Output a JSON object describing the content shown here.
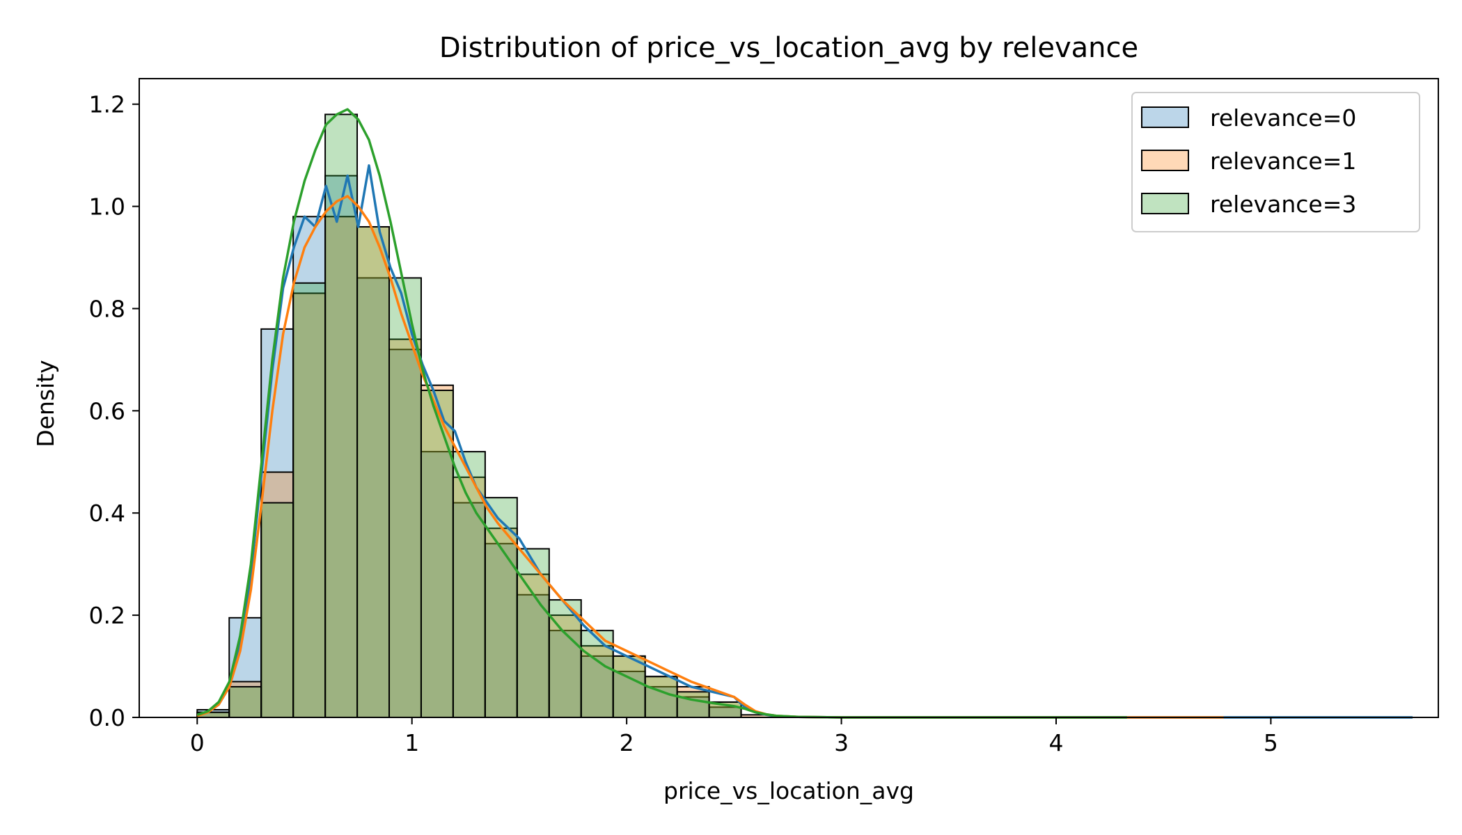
{
  "chart_data": {
    "type": "histogram",
    "title": "Distribution of price_vs_location_avg by relevance",
    "xlabel": "price_vs_location_avg",
    "ylabel": "Density",
    "xlim": [
      -0.27,
      5.78
    ],
    "ylim": [
      0,
      1.25
    ],
    "xticks": [
      0,
      1,
      2,
      3,
      4,
      5
    ],
    "yticks": [
      0.0,
      0.2,
      0.4,
      0.6,
      0.8,
      1.0,
      1.2
    ],
    "xtick_labels": [
      "0",
      "1",
      "2",
      "3",
      "4",
      "5"
    ],
    "ytick_labels": [
      "0.0",
      "0.2",
      "0.4",
      "0.6",
      "0.8",
      "1.0",
      "1.2"
    ],
    "grid": false,
    "legend_position": "top-right",
    "series": [
      {
        "name": "relevance=0",
        "color": "#1f77b4",
        "bin_start": 0.0,
        "bin_width": 0.149,
        "density": [
          0.015,
          0.195,
          0.76,
          0.98,
          1.06,
          0.86,
          0.72,
          0.52,
          0.42,
          0.34,
          0.24,
          0.17,
          0.12,
          0.09,
          0.06,
          0.04,
          0.02
        ],
        "kde_x": [
          0.0,
          0.05,
          0.1,
          0.15,
          0.2,
          0.25,
          0.3,
          0.35,
          0.4,
          0.45,
          0.5,
          0.55,
          0.6,
          0.65,
          0.7,
          0.75,
          0.8,
          0.85,
          0.9,
          0.95,
          1.0,
          1.05,
          1.1,
          1.15,
          1.2,
          1.25,
          1.3,
          1.35,
          1.4,
          1.5,
          1.6,
          1.7,
          1.8,
          1.9,
          2.0,
          2.1,
          2.2,
          2.3,
          2.4,
          2.5,
          2.55,
          2.6,
          2.65,
          2.7,
          2.8,
          3.0,
          3.5,
          4.0,
          4.5,
          5.0,
          5.66
        ],
        "kde_y": [
          0.005,
          0.01,
          0.025,
          0.06,
          0.14,
          0.28,
          0.48,
          0.68,
          0.84,
          0.92,
          0.98,
          0.96,
          1.04,
          0.97,
          1.06,
          0.96,
          1.08,
          0.95,
          0.88,
          0.83,
          0.75,
          0.69,
          0.64,
          0.58,
          0.56,
          0.5,
          0.45,
          0.42,
          0.39,
          0.35,
          0.28,
          0.23,
          0.18,
          0.14,
          0.12,
          0.1,
          0.08,
          0.06,
          0.05,
          0.04,
          0.02,
          0.01,
          0.005,
          0.002,
          0.001,
          0.0,
          0.0,
          0.0,
          0.0,
          0.0,
          0.0
        ]
      },
      {
        "name": "relevance=1",
        "color": "#ff7f0e",
        "bin_start": 0.0,
        "bin_width": 0.149,
        "density": [
          0.01,
          0.07,
          0.48,
          0.83,
          0.98,
          0.96,
          0.74,
          0.65,
          0.47,
          0.37,
          0.28,
          0.2,
          0.14,
          0.12,
          0.08,
          0.06,
          0.03,
          0.005
        ],
        "kde_x": [
          0.0,
          0.05,
          0.1,
          0.15,
          0.2,
          0.25,
          0.3,
          0.35,
          0.4,
          0.45,
          0.5,
          0.55,
          0.6,
          0.65,
          0.7,
          0.75,
          0.8,
          0.85,
          0.9,
          0.95,
          1.0,
          1.05,
          1.1,
          1.15,
          1.2,
          1.25,
          1.3,
          1.35,
          1.4,
          1.5,
          1.6,
          1.7,
          1.8,
          1.9,
          2.0,
          2.1,
          2.2,
          2.3,
          2.4,
          2.5,
          2.55,
          2.6,
          2.65,
          2.7,
          2.8,
          3.0,
          3.5,
          4.0,
          4.5,
          4.78
        ],
        "kde_y": [
          0.003,
          0.01,
          0.025,
          0.06,
          0.13,
          0.25,
          0.42,
          0.6,
          0.75,
          0.85,
          0.92,
          0.96,
          0.99,
          1.01,
          1.02,
          1.0,
          0.97,
          0.92,
          0.86,
          0.79,
          0.73,
          0.67,
          0.62,
          0.57,
          0.53,
          0.49,
          0.45,
          0.41,
          0.38,
          0.33,
          0.28,
          0.23,
          0.19,
          0.15,
          0.13,
          0.11,
          0.09,
          0.07,
          0.055,
          0.04,
          0.025,
          0.012,
          0.006,
          0.003,
          0.001,
          0.0,
          0.0,
          0.0,
          0.0,
          0.0
        ]
      },
      {
        "name": "relevance=3",
        "color": "#2ca02c",
        "bin_start": 0.0,
        "bin_width": 0.149,
        "density": [
          0.01,
          0.06,
          0.42,
          0.85,
          1.18,
          0.96,
          0.86,
          0.64,
          0.52,
          0.43,
          0.33,
          0.23,
          0.17,
          0.12,
          0.08,
          0.05,
          0.03
        ],
        "kde_x": [
          0.0,
          0.05,
          0.1,
          0.15,
          0.2,
          0.25,
          0.3,
          0.35,
          0.4,
          0.45,
          0.5,
          0.55,
          0.6,
          0.65,
          0.7,
          0.75,
          0.8,
          0.85,
          0.9,
          0.95,
          1.0,
          1.05,
          1.1,
          1.15,
          1.2,
          1.25,
          1.3,
          1.35,
          1.4,
          1.5,
          1.6,
          1.7,
          1.8,
          1.9,
          2.0,
          2.1,
          2.2,
          2.3,
          2.4,
          2.5,
          2.55,
          2.6,
          2.65,
          2.7,
          2.8,
          3.0,
          3.5,
          4.0,
          4.33
        ],
        "kde_y": [
          0.005,
          0.012,
          0.03,
          0.07,
          0.16,
          0.3,
          0.5,
          0.7,
          0.86,
          0.97,
          1.05,
          1.11,
          1.16,
          1.18,
          1.19,
          1.17,
          1.13,
          1.06,
          0.97,
          0.87,
          0.77,
          0.68,
          0.61,
          0.55,
          0.49,
          0.44,
          0.4,
          0.37,
          0.34,
          0.28,
          0.22,
          0.17,
          0.13,
          0.1,
          0.08,
          0.06,
          0.045,
          0.035,
          0.028,
          0.022,
          0.017,
          0.01,
          0.006,
          0.003,
          0.001,
          0.0,
          0.0,
          0.0,
          0.0
        ]
      }
    ]
  }
}
